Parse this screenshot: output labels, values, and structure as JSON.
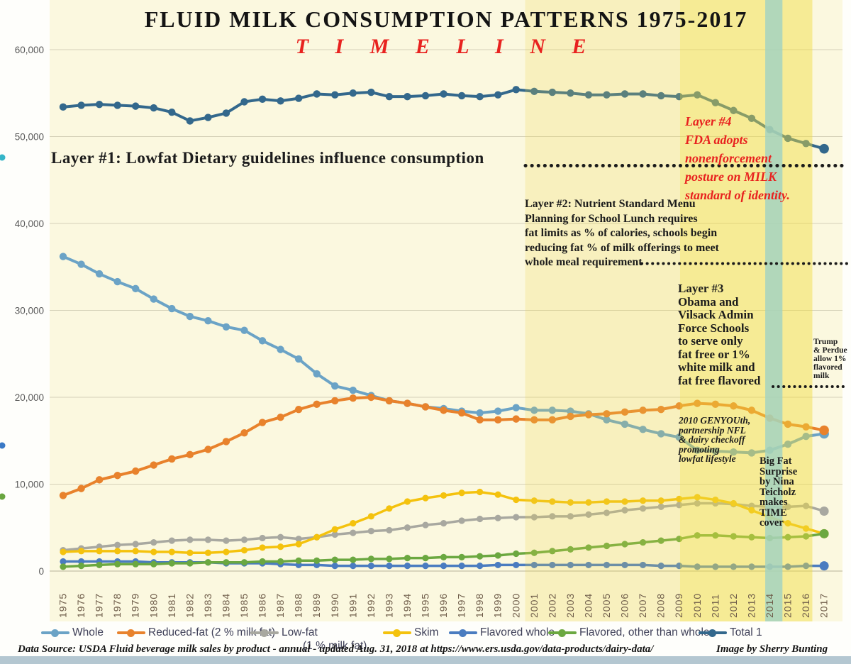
{
  "colors": {
    "plot_background": "#fbf8df",
    "accent_red": "#e8221f",
    "gridline": "#c9c4ac",
    "axis_label": "#595959",
    "year_label": "#6e5c49",
    "legend_text": "#3f4058",
    "dotted_leader": "#1a1a1a",
    "bottom_bar": "#b4c7d1"
  },
  "chart_data": {
    "type": "line",
    "title": "FLUID MILK CONSUMPTION PATTERNS 1975-2017",
    "subtitle": "T I M E L I N E",
    "xlabel": "",
    "ylabel": "",
    "ylim": [
      0,
      60000
    ],
    "grid": "horizontal",
    "legend_position": "bottom",
    "x": [
      "1975",
      "1976",
      "1977",
      "1978",
      "1979",
      "1980",
      "1981",
      "1982",
      "1983",
      "1984",
      "1985",
      "1986",
      "1987",
      "1988",
      "1989",
      "1990",
      "1991",
      "1992",
      "1993",
      "1994",
      "1995",
      "1996",
      "1997",
      "1998",
      "1999",
      "2000",
      "2001",
      "2002",
      "2003",
      "2004",
      "2005",
      "2006",
      "2007",
      "2008",
      "2009",
      "2010",
      "2011",
      "2012",
      "2013",
      "2014",
      "2015",
      "2016",
      "2017"
    ],
    "yticks": [
      {
        "v": 0,
        "label": "0"
      },
      {
        "v": 10000,
        "label": "10,000"
      },
      {
        "v": 20000,
        "label": "20,000"
      },
      {
        "v": 30000,
        "label": "30,000"
      },
      {
        "v": 40000,
        "label": "40,000"
      },
      {
        "v": 50000,
        "label": "50,000"
      },
      {
        "v": 60000,
        "label": "60,000"
      }
    ],
    "series": [
      {
        "name": "Low-fat (1 % milk fat)",
        "slug": "low-fat",
        "color": "#a8a8a0",
        "values": [
          2400,
          2600,
          2800,
          3000,
          3100,
          3300,
          3500,
          3600,
          3600,
          3500,
          3600,
          3800,
          3900,
          3700,
          3900,
          4200,
          4400,
          4600,
          4700,
          5000,
          5300,
          5500,
          5800,
          6000,
          6100,
          6200,
          6200,
          6300,
          6300,
          6500,
          6700,
          7000,
          7200,
          7400,
          7600,
          7800,
          7800,
          7700,
          7500,
          7400,
          7400,
          7500,
          6900
        ]
      },
      {
        "name": "Skim",
        "slug": "skim",
        "color": "#f4c20d",
        "values": [
          2200,
          2300,
          2300,
          2300,
          2300,
          2200,
          2200,
          2100,
          2100,
          2200,
          2400,
          2700,
          2800,
          3100,
          3900,
          4800,
          5500,
          6300,
          7200,
          8000,
          8400,
          8700,
          9000,
          9100,
          8800,
          8200,
          8100,
          8000,
          7900,
          7900,
          8000,
          8000,
          8100,
          8100,
          8300,
          8500,
          8200,
          7800,
          7000,
          6200,
          5500,
          4900,
          4300
        ]
      },
      {
        "name": "Flavored whole",
        "slug": "flavored-whole",
        "color": "#4a7cc0",
        "values": [
          1100,
          1100,
          1100,
          1100,
          1100,
          1000,
          1000,
          1000,
          1000,
          900,
          900,
          900,
          800,
          700,
          700,
          600,
          600,
          600,
          600,
          600,
          600,
          600,
          600,
          600,
          700,
          700,
          700,
          700,
          700,
          700,
          700,
          700,
          700,
          600,
          600,
          500,
          500,
          500,
          500,
          500,
          500,
          600,
          600
        ]
      },
      {
        "name": "Flavored, other than whole",
        "slug": "flavored-other",
        "color": "#6ba840",
        "values": [
          500,
          600,
          700,
          800,
          800,
          800,
          900,
          900,
          1000,
          1000,
          1000,
          1100,
          1100,
          1200,
          1200,
          1300,
          1300,
          1400,
          1400,
          1500,
          1500,
          1600,
          1600,
          1700,
          1800,
          2000,
          2100,
          2300,
          2500,
          2700,
          2900,
          3100,
          3300,
          3500,
          3700,
          4100,
          4100,
          4000,
          3900,
          3800,
          3900,
          4000,
          4300
        ]
      },
      {
        "name": "Whole",
        "slug": "whole",
        "color": "#6ba3c6",
        "values": [
          36200,
          35300,
          34200,
          33300,
          32500,
          31300,
          30200,
          29300,
          28800,
          28100,
          27700,
          26500,
          25500,
          24400,
          22700,
          21300,
          20800,
          20200,
          19600,
          19300,
          18900,
          18700,
          18400,
          18200,
          18400,
          18800,
          18500,
          18500,
          18400,
          18100,
          17400,
          16900,
          16300,
          15800,
          15400,
          13900,
          13800,
          13700,
          13600,
          13900,
          14600,
          15500,
          15800
        ]
      },
      {
        "name": "Reduced-fat (2 % milk fat)",
        "slug": "reduced-fat",
        "color": "#e8822c",
        "values": [
          8700,
          9500,
          10500,
          11000,
          11500,
          12200,
          12900,
          13400,
          14000,
          14900,
          15900,
          17100,
          17700,
          18600,
          19200,
          19600,
          19900,
          20000,
          19600,
          19300,
          18900,
          18500,
          18200,
          17400,
          17400,
          17500,
          17400,
          17400,
          17800,
          18000,
          18100,
          18300,
          18500,
          18600,
          19000,
          19300,
          19200,
          19000,
          18500,
          17600,
          16900,
          16600,
          16200
        ]
      },
      {
        "name": "Total 1",
        "slug": "total",
        "color": "#33688c",
        "values": [
          53400,
          53600,
          53700,
          53600,
          53500,
          53300,
          52800,
          51800,
          52200,
          52700,
          54000,
          54300,
          54100,
          54400,
          54900,
          54800,
          55000,
          55100,
          54600,
          54600,
          54700,
          54900,
          54700,
          54600,
          54800,
          55400,
          55200,
          55100,
          55000,
          54800,
          54800,
          54900,
          54900,
          54700,
          54600,
          54800,
          53900,
          53000,
          52100,
          50800,
          49800,
          49200,
          48600
        ]
      }
    ],
    "legend": [
      {
        "series": 4,
        "label": "Whole"
      },
      {
        "series": 5,
        "label": "Reduced-fat (2 % milk fat)"
      },
      {
        "series": 0,
        "label": "Low-fat",
        "label2": "(1 % milk fat)"
      },
      {
        "series": 1,
        "label": "Skim"
      },
      {
        "series": 2,
        "label": "Flavored whole"
      },
      {
        "series": 3,
        "label": "Flavored, other than whole"
      },
      {
        "series": 6,
        "label": "Total 1"
      }
    ],
    "highlight_bands": [
      {
        "from_year": 2000.5,
        "to_year": 2009.05,
        "color": "rgba(237,214,75,0.22)"
      },
      {
        "from_year": 2009.05,
        "to_year": 2016.35,
        "color": "rgba(240,220,60,0.45)"
      },
      {
        "from_year": 2013.75,
        "to_year": 2014.7,
        "color": "rgba(160,210,195,0.8)"
      }
    ]
  },
  "annotations": {
    "layer1": {
      "text": "Layer #1: Lowfat Dietary guidelines influence consumption"
    },
    "layer2": {
      "text": "Layer #2: Nutrient Standard Menu\nPlanning for School Lunch requires\nfat limits as % of calories, schools begin\nreducing fat % of milk offerings to meet\nwhole meal requirement"
    },
    "layer3": {
      "text": "Layer #3\nObama and\nVilsack Admin\nForce Schools\nto serve only\nfat free or 1%\nwhite milk and\nfat free flavored"
    },
    "layer4": {
      "text": "Layer #4\nFDA adopts\nnonenforcement\nposture on MILK\nstandard of identity."
    },
    "genyouth": {
      "text": "2010 GENYOUth,\npartnership NFL\n& dairy checkoff\npromoting\nlowfat lifestyle"
    },
    "bigfat": {
      "text": "Big Fat\nSurprise\nby Nina\nTeicholz\nmakes\nTIME\ncover"
    },
    "trump": {
      "text": "Trump\n& Perdue\nallow 1%\nflavored\nmilk"
    }
  },
  "footer": {
    "source": "Data Source: USDA Fluid beverage milk sales by product - annual - updated Aug. 31, 2018 at https://www.ers.usda.gov/data-products/dairy-data/",
    "credit": "Image by Sherry Bunting"
  }
}
